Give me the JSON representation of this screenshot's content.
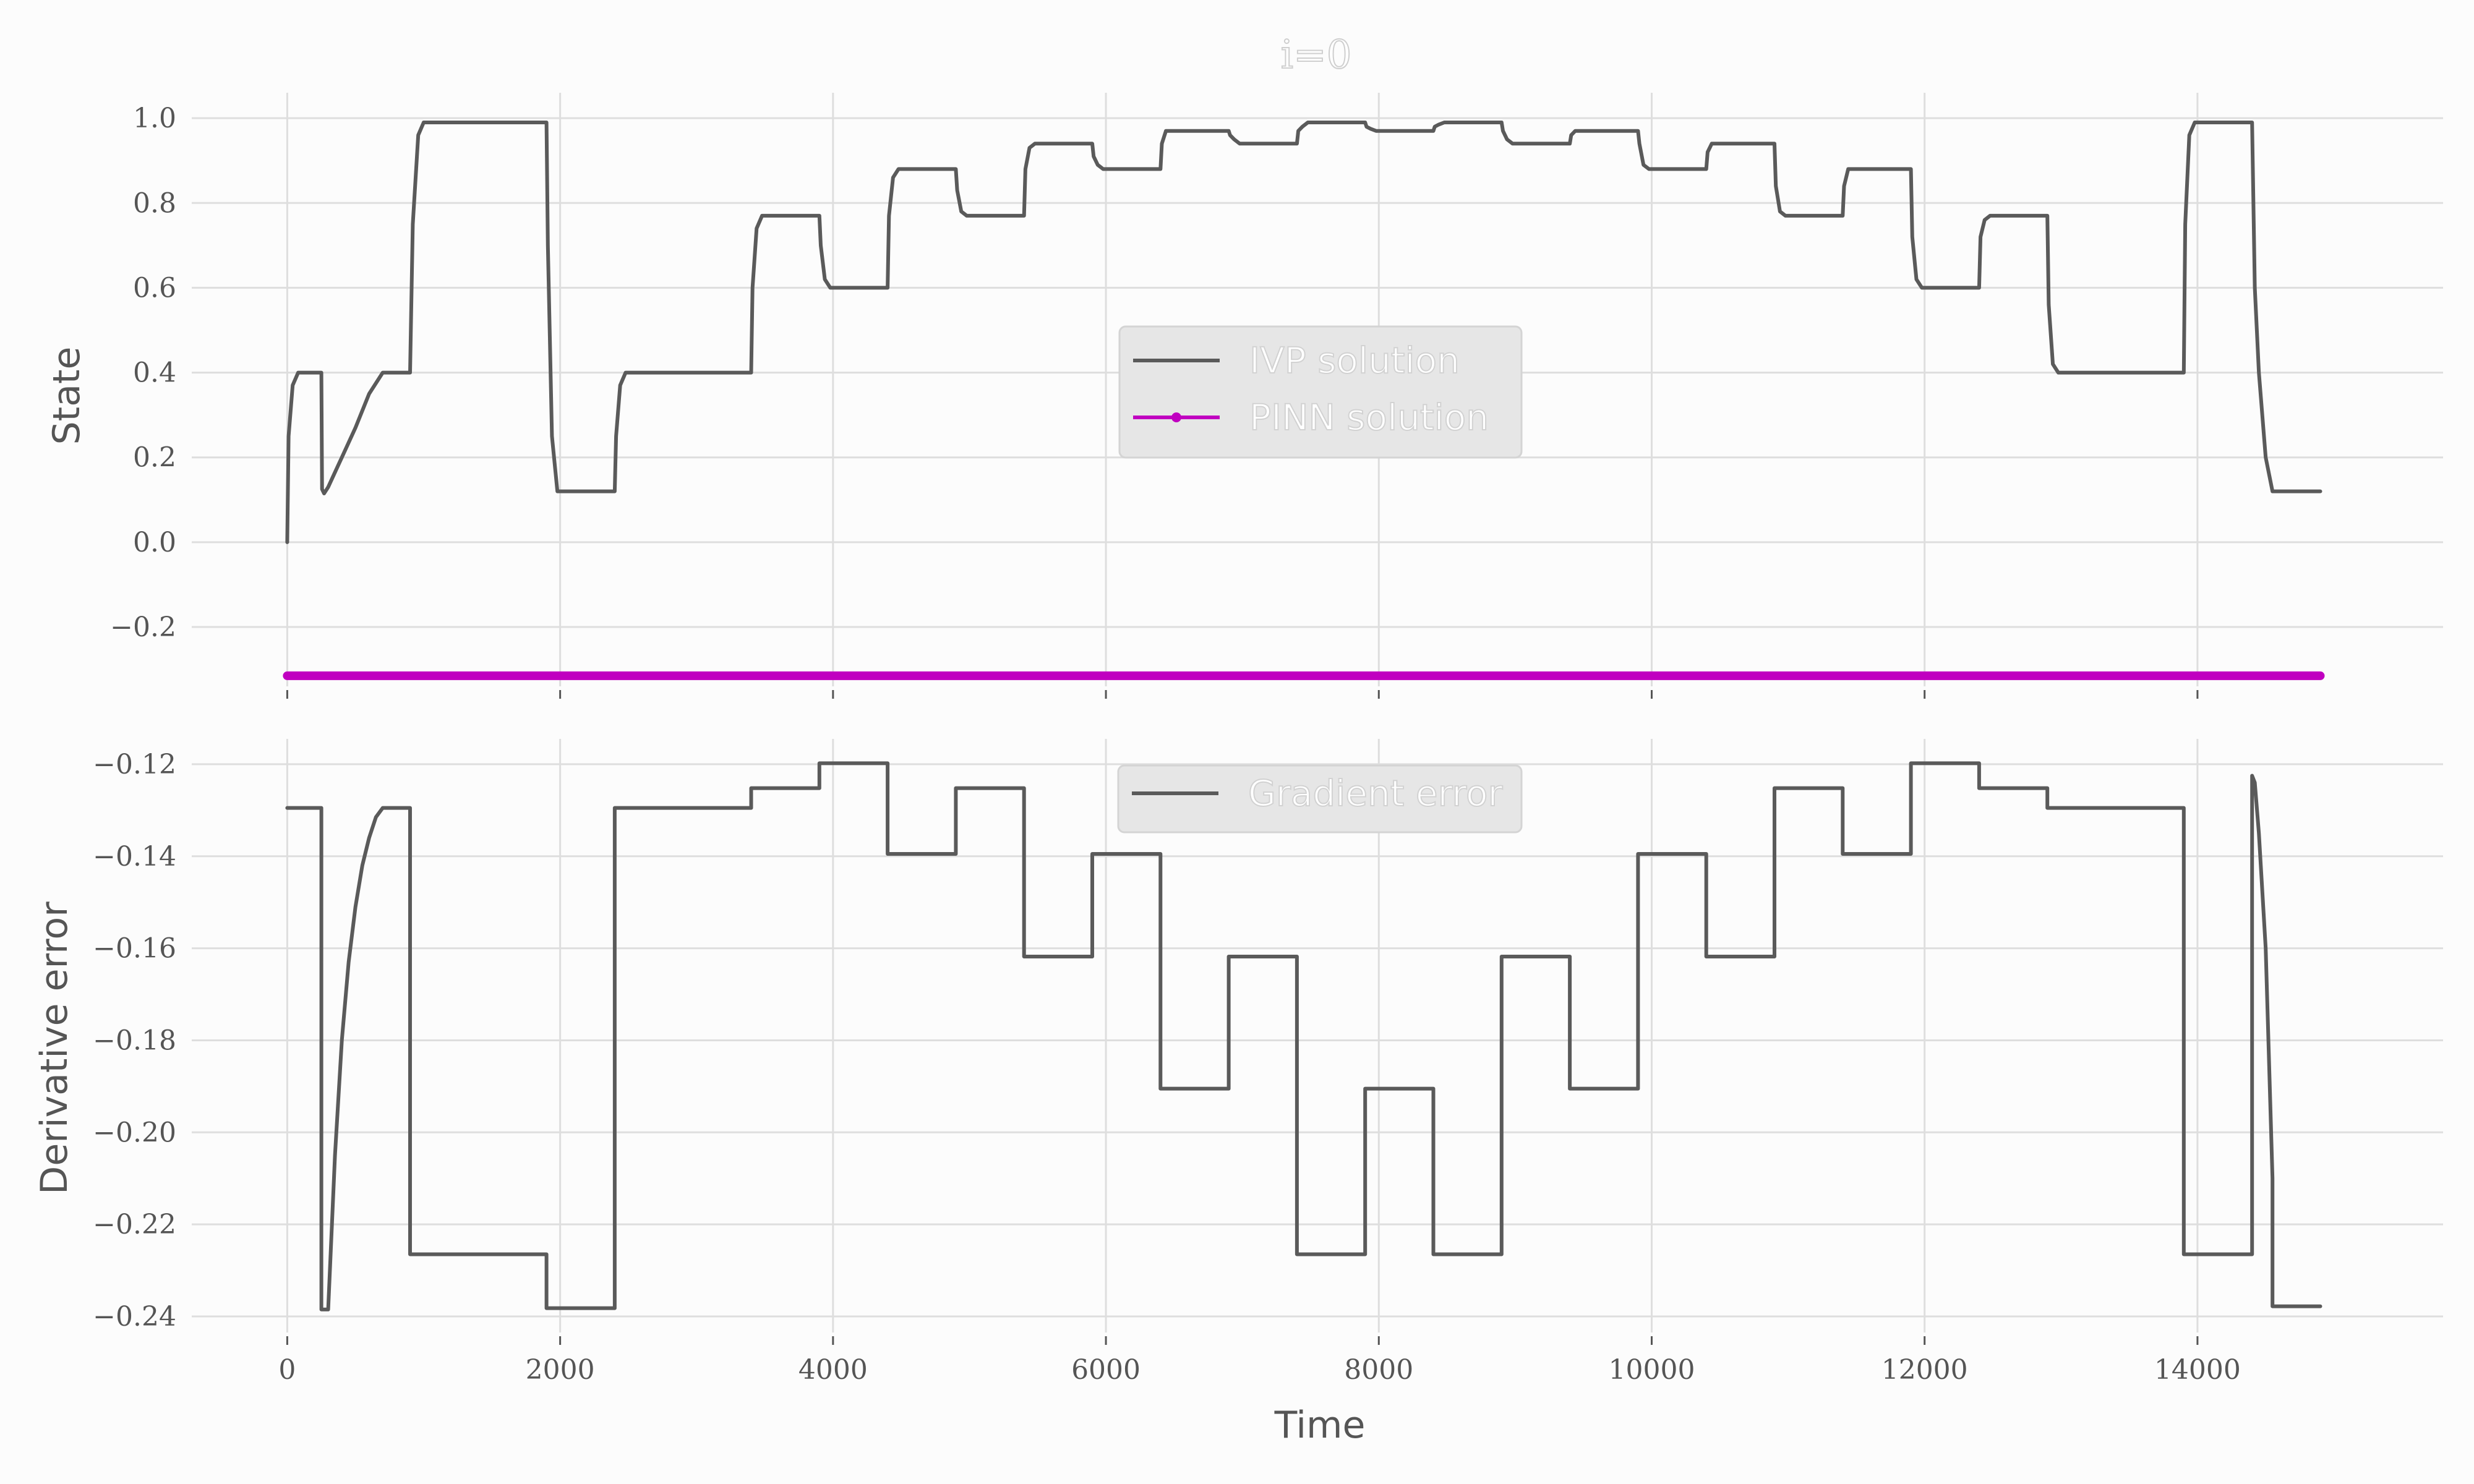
{
  "figure_title": "i=0",
  "chart_data": [
    {
      "type": "line",
      "ylabel": "State",
      "xlim": [
        -700,
        15800
      ],
      "ylim": [
        -0.34,
        1.06
      ],
      "xticks": [
        0,
        2000,
        4000,
        6000,
        8000,
        10000,
        12000,
        14000
      ],
      "yticks": [
        -0.2,
        0.0,
        0.2,
        0.4,
        0.6,
        0.8,
        1.0
      ],
      "ytick_labels": [
        "−0.2",
        "0.0",
        "0.2",
        "0.4",
        "0.6",
        "0.8",
        "1.0"
      ],
      "grid": true,
      "legend": {
        "placement": "center",
        "entries": [
          "IVP solution",
          "PINN solution"
        ]
      },
      "series": [
        {
          "name": "IVP solution",
          "color": "#5a5a5a",
          "x": [
            0,
            10,
            40,
            80,
            150,
            250,
            255,
            270,
            300,
            400,
            500,
            600,
            700,
            710,
            740,
            780,
            900,
            920,
            960,
            1000,
            1900,
            1910,
            1940,
            1980,
            2400,
            2410,
            2440,
            2480,
            3400,
            3410,
            3440,
            3480,
            3900,
            3910,
            3940,
            3980,
            4400,
            4410,
            4440,
            4480,
            4900,
            4910,
            4940,
            4980,
            5400,
            5410,
            5440,
            5480,
            5900,
            5910,
            5940,
            5980,
            6400,
            6410,
            6440,
            6480,
            6900,
            6910,
            6940,
            6980,
            7400,
            7410,
            7440,
            7480,
            7900,
            7910,
            7940,
            7980,
            8400,
            8410,
            8440,
            8480,
            8900,
            8910,
            8940,
            8980,
            9400,
            9410,
            9440,
            9480,
            9900,
            9910,
            9940,
            9980,
            10400,
            10410,
            10440,
            10480,
            10900,
            10910,
            10940,
            10980,
            11400,
            11410,
            11440,
            11480,
            11900,
            11910,
            11940,
            11980,
            12400,
            12410,
            12440,
            12480,
            12900,
            12910,
            12940,
            12980,
            13900,
            13910,
            13940,
            13980,
            14400,
            14420,
            14450,
            14500,
            14550,
            14900
          ],
          "y": [
            0.0,
            0.25,
            0.37,
            0.4,
            0.4,
            0.4,
            0.125,
            0.115,
            0.13,
            0.2,
            0.27,
            0.35,
            0.4,
            0.4,
            0.4,
            0.4,
            0.4,
            0.75,
            0.96,
            0.99,
            0.99,
            0.7,
            0.25,
            0.12,
            0.12,
            0.25,
            0.37,
            0.4,
            0.4,
            0.6,
            0.74,
            0.77,
            0.77,
            0.7,
            0.62,
            0.6,
            0.6,
            0.77,
            0.86,
            0.88,
            0.88,
            0.83,
            0.78,
            0.77,
            0.77,
            0.88,
            0.93,
            0.94,
            0.94,
            0.91,
            0.89,
            0.88,
            0.88,
            0.94,
            0.97,
            0.97,
            0.97,
            0.96,
            0.95,
            0.94,
            0.94,
            0.97,
            0.98,
            0.99,
            0.99,
            0.98,
            0.975,
            0.97,
            0.97,
            0.98,
            0.985,
            0.99,
            0.99,
            0.97,
            0.95,
            0.94,
            0.94,
            0.96,
            0.97,
            0.97,
            0.97,
            0.94,
            0.89,
            0.88,
            0.88,
            0.92,
            0.94,
            0.94,
            0.94,
            0.84,
            0.78,
            0.77,
            0.77,
            0.84,
            0.88,
            0.88,
            0.88,
            0.72,
            0.62,
            0.6,
            0.6,
            0.72,
            0.76,
            0.77,
            0.77,
            0.56,
            0.42,
            0.4,
            0.4,
            0.75,
            0.96,
            0.99,
            0.99,
            0.6,
            0.4,
            0.2,
            0.12,
            0.12
          ]
        },
        {
          "name": "PINN solution",
          "color": "#c000c0",
          "x": [
            0,
            14900
          ],
          "y": [
            -0.315,
            -0.315
          ]
        }
      ]
    },
    {
      "type": "line",
      "xlabel": "Time",
      "ylabel": "Derivative error",
      "xlim": [
        -700,
        15800
      ],
      "ylim": [
        -0.2435,
        -0.1145
      ],
      "xticks": [
        0,
        2000,
        4000,
        6000,
        8000,
        10000,
        12000,
        14000
      ],
      "xtick_labels": [
        "0",
        "2000",
        "4000",
        "6000",
        "8000",
        "10000",
        "12000",
        "14000"
      ],
      "yticks": [
        -0.24,
        -0.22,
        -0.2,
        -0.18,
        -0.16,
        -0.14,
        -0.12
      ],
      "ytick_labels": [
        "−0.24",
        "−0.22",
        "−0.20",
        "−0.18",
        "−0.16",
        "−0.14",
        "−0.12"
      ],
      "grid": true,
      "legend": {
        "placement": "top-center",
        "entries": [
          "Gradient error"
        ]
      },
      "series": [
        {
          "name": "Gradient error",
          "color": "#5a5a5a",
          "x": [
            0,
            250,
            250,
            300,
            350,
            400,
            450,
            500,
            550,
            600,
            650,
            700,
            900,
            900,
            1900,
            1900,
            2400,
            2400,
            3400,
            3400,
            3900,
            3900,
            4400,
            4400,
            4900,
            4900,
            5400,
            5400,
            5900,
            5900,
            6400,
            6400,
            6900,
            6900,
            7400,
            7400,
            7900,
            7900,
            8400,
            8400,
            8900,
            8900,
            9400,
            9400,
            9900,
            9900,
            10400,
            10400,
            10900,
            10900,
            11400,
            11400,
            11900,
            11900,
            12400,
            12400,
            12900,
            12900,
            13900,
            13900,
            14400,
            14400,
            14420,
            14450,
            14500,
            14520,
            14550,
            14550,
            14900
          ],
          "y": [
            -0.1295,
            -0.1295,
            -0.2385,
            -0.2385,
            -0.205,
            -0.18,
            -0.163,
            -0.151,
            -0.142,
            -0.136,
            -0.1315,
            -0.1295,
            -0.1295,
            -0.2265,
            -0.2265,
            -0.2382,
            -0.2382,
            -0.1295,
            -0.1295,
            -0.1252,
            -0.1252,
            -0.1198,
            -0.1198,
            -0.1395,
            -0.1395,
            -0.1252,
            -0.1252,
            -0.1618,
            -0.1618,
            -0.1395,
            -0.1395,
            -0.1905,
            -0.1905,
            -0.1618,
            -0.1618,
            -0.2265,
            -0.2265,
            -0.1905,
            -0.1905,
            -0.2265,
            -0.2265,
            -0.1618,
            -0.1618,
            -0.1905,
            -0.1905,
            -0.1395,
            -0.1395,
            -0.1618,
            -0.1618,
            -0.1252,
            -0.1252,
            -0.1395,
            -0.1395,
            -0.1198,
            -0.1198,
            -0.1252,
            -0.1252,
            -0.1295,
            -0.1295,
            -0.2265,
            -0.2265,
            -0.1225,
            -0.124,
            -0.135,
            -0.16,
            -0.18,
            -0.21,
            -0.2378,
            -0.2378
          ]
        }
      ]
    }
  ]
}
